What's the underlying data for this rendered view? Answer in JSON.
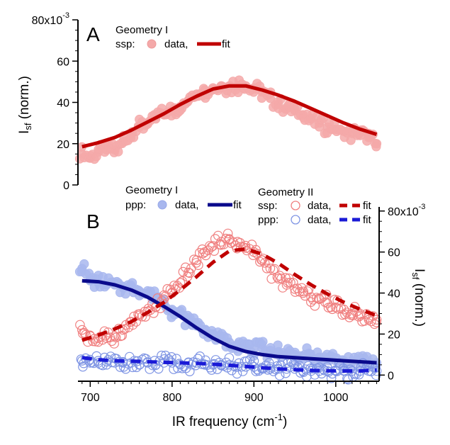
{
  "chart_data": [
    {
      "panel_label": "A",
      "type": "scatter",
      "ylabel": {
        "main": "I",
        "sub": "sf",
        "rest": " (norm.)"
      },
      "ytick_labels": [
        "0",
        "20",
        "40",
        "60",
        "80x10"
      ],
      "ytick_exp": "-3",
      "ylim": [
        0,
        80
      ],
      "xlim": [
        685,
        1053
      ],
      "legend": {
        "group": "Geometry I",
        "pol": "ssp:",
        "data_label": "data,",
        "fit_label": "fit"
      },
      "series": [
        {
          "name": "data",
          "style": "filled-circle",
          "color": "#f4a9a9",
          "x": [
            690,
            700,
            710,
            720,
            730,
            740,
            750,
            760,
            770,
            780,
            790,
            800,
            810,
            820,
            830,
            840,
            850,
            860,
            870,
            880,
            890,
            900,
            910,
            920,
            930,
            940,
            950,
            960,
            970,
            980,
            990,
            1000,
            1010,
            1020,
            1030,
            1040,
            1050
          ],
          "y": [
            15,
            13,
            16,
            17,
            17,
            21,
            25,
            28,
            30,
            32,
            34,
            36,
            38,
            41,
            44,
            46,
            47,
            48,
            48,
            48,
            48,
            47,
            45,
            42,
            39,
            37,
            36,
            34,
            32,
            30,
            28,
            27,
            26,
            25,
            24,
            23,
            20
          ]
        },
        {
          "name": "fit",
          "style": "line",
          "color": "#c00000",
          "x": [
            690,
            710,
            730,
            750,
            770,
            790,
            810,
            830,
            850,
            870,
            890,
            910,
            930,
            950,
            970,
            990,
            1010,
            1030,
            1050
          ],
          "y": [
            18.5,
            20.5,
            23,
            26.5,
            30.5,
            34.5,
            39,
            43,
            46.5,
            48,
            48,
            46,
            43.5,
            40.5,
            37,
            33.5,
            30,
            27,
            24.5
          ]
        }
      ]
    },
    {
      "panel_label": "B",
      "type": "scatter",
      "xlabel": {
        "main": "IR frequency (cm",
        "sup": "-1",
        "rest": ")"
      },
      "xtick_labels": [
        "700",
        "800",
        "900",
        "1000"
      ],
      "xticks": [
        700,
        800,
        900,
        1000
      ],
      "xlim": [
        685,
        1053
      ],
      "ylabel": {
        "main": "I",
        "sub": "sf",
        "rest": " (norm.)"
      },
      "ytick_labels": [
        "0",
        "20",
        "40",
        "60",
        "80x10"
      ],
      "ytick_exp": "-3",
      "ylim": [
        -3,
        82
      ],
      "legend": {
        "geom1": {
          "group": "Geometry I",
          "pol": "ppp:",
          "data_label": "data,",
          "fit_label": "fit"
        },
        "geom2": {
          "group": "Geometry II",
          "ssp": {
            "pol": "ssp:",
            "data_label": "data,",
            "fit_label": "fit"
          },
          "ppp": {
            "pol": "ppp:",
            "data_label": "data,",
            "fit_label": "fit"
          }
        }
      },
      "series": [
        {
          "name": "data",
          "group": "Geometry I",
          "polarization": "ppp",
          "style": "filled-circle",
          "color": "#a8b7ee",
          "x": [
            690,
            700,
            710,
            720,
            730,
            740,
            750,
            760,
            770,
            780,
            790,
            800,
            810,
            820,
            830,
            840,
            850,
            860,
            870,
            880,
            890,
            900,
            910,
            920,
            930,
            940,
            950,
            960,
            970,
            980,
            990,
            1000,
            1010,
            1020,
            1030,
            1040,
            1050
          ],
          "y": [
            52,
            46,
            45,
            44,
            44,
            43,
            43,
            41,
            40,
            38,
            35,
            32,
            30,
            27,
            24,
            22,
            20,
            18,
            16,
            15,
            14,
            13,
            13,
            12,
            11,
            10,
            10,
            9,
            9,
            8,
            8,
            7,
            7,
            7,
            6,
            6,
            6
          ]
        },
        {
          "name": "fit",
          "group": "Geometry I",
          "polarization": "ppp",
          "style": "line",
          "color": "#0a0a8c",
          "x": [
            690,
            710,
            730,
            750,
            770,
            790,
            810,
            830,
            850,
            870,
            890,
            910,
            930,
            950,
            970,
            990,
            1010,
            1030,
            1050
          ],
          "y": [
            46,
            45.5,
            44,
            41.5,
            38,
            33.5,
            28.5,
            23,
            18,
            14,
            11.5,
            10,
            9,
            8.5,
            8,
            7.5,
            7,
            6.5,
            6
          ]
        },
        {
          "name": "data",
          "group": "Geometry II",
          "polarization": "ssp",
          "style": "open-circle",
          "color": "#f08080",
          "x": [
            690,
            700,
            710,
            720,
            730,
            740,
            750,
            760,
            770,
            780,
            790,
            800,
            810,
            820,
            830,
            840,
            850,
            860,
            870,
            880,
            890,
            900,
            910,
            920,
            930,
            940,
            950,
            960,
            970,
            980,
            990,
            1000,
            1010,
            1020,
            1030,
            1040,
            1050
          ],
          "y": [
            22,
            19,
            18,
            18,
            19,
            22,
            26,
            29,
            31,
            33,
            37,
            40,
            45,
            50,
            56,
            60,
            63,
            65,
            66,
            65,
            62,
            60,
            56,
            52,
            47,
            44,
            42,
            40,
            38,
            37,
            35,
            33,
            32,
            30,
            29,
            28,
            27
          ]
        },
        {
          "name": "fit",
          "group": "Geometry II",
          "polarization": "ssp",
          "style": "dashed",
          "color": "#c00000",
          "x": [
            690,
            710,
            730,
            750,
            770,
            790,
            810,
            830,
            850,
            870,
            890,
            910,
            930,
            950,
            970,
            990,
            1010,
            1030,
            1050
          ],
          "y": [
            17,
            19.5,
            22.5,
            26,
            30.5,
            35.5,
            41.5,
            48,
            55,
            60.5,
            61.5,
            59,
            54.5,
            49,
            44,
            39.5,
            35.5,
            32,
            29
          ]
        },
        {
          "name": "data",
          "group": "Geometry II",
          "polarization": "ppp",
          "style": "open-circle",
          "color": "#7f95e4",
          "x": [
            690,
            700,
            710,
            720,
            730,
            740,
            750,
            760,
            770,
            780,
            790,
            800,
            810,
            820,
            830,
            840,
            850,
            860,
            870,
            880,
            890,
            900,
            910,
            920,
            930,
            940,
            950,
            960,
            970,
            980,
            990,
            1000,
            1010,
            1020,
            1030,
            1040,
            1050
          ],
          "y": [
            7,
            6,
            6,
            5,
            6,
            6,
            6,
            5,
            6,
            5,
            6,
            6,
            5,
            6,
            6,
            5,
            5,
            5,
            5,
            4,
            4,
            4,
            3,
            3,
            3,
            3,
            3,
            2,
            2,
            2,
            2,
            2,
            2,
            2,
            2,
            2,
            2
          ]
        },
        {
          "name": "fit",
          "group": "Geometry II",
          "polarization": "ppp",
          "style": "dashed",
          "color": "#1a1ad6",
          "x": [
            690,
            710,
            730,
            750,
            770,
            790,
            810,
            830,
            850,
            870,
            890,
            910,
            930,
            950,
            970,
            990,
            1010,
            1030,
            1050
          ],
          "y": [
            8.5,
            7.5,
            7,
            6.8,
            6.5,
            6.2,
            6,
            5.7,
            5.3,
            4.8,
            4.2,
            3.6,
            3,
            2.6,
            2.3,
            2.1,
            2,
            2,
            2.5
          ]
        }
      ]
    }
  ]
}
